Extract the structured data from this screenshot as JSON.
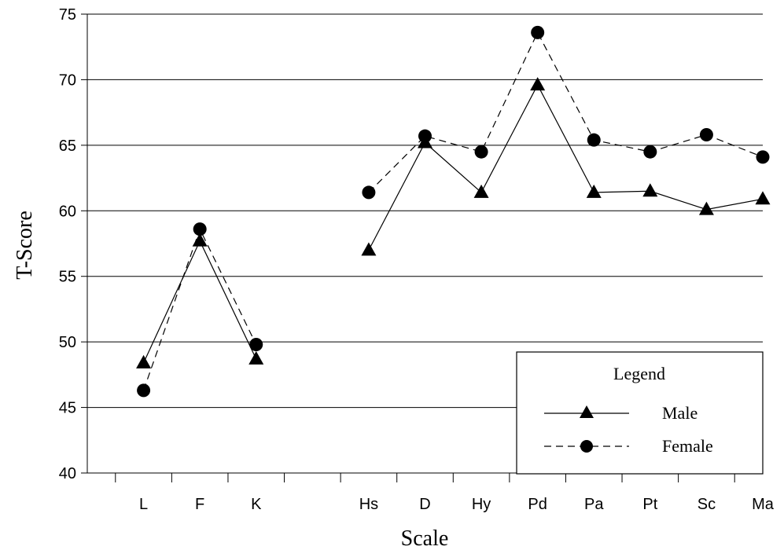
{
  "chart_data": {
    "type": "line",
    "xlabel": "Scale",
    "ylabel": "T-Score",
    "ylim": [
      40,
      75
    ],
    "yticks": [
      40,
      45,
      50,
      55,
      60,
      65,
      70,
      75
    ],
    "categories": [
      "L",
      "F",
      "K",
      "",
      "Hs",
      "D",
      "Hy",
      "Pd",
      "Pa",
      "Pt",
      "Sc",
      "Ma"
    ],
    "grid": "horizontal",
    "legend": {
      "title": "Legend",
      "position": "bottom-right"
    },
    "series": [
      {
        "name": "Male",
        "marker": "triangle",
        "line": "solid",
        "segments": [
          {
            "categories": [
              "L",
              "F",
              "K"
            ],
            "values": [
              48.4,
              57.7,
              48.7
            ]
          },
          {
            "categories": [
              "Hs",
              "D",
              "Hy",
              "Pd",
              "Pa",
              "Pt",
              "Sc",
              "Ma"
            ],
            "values": [
              57.0,
              65.2,
              61.4,
              69.6,
              61.4,
              61.5,
              60.1,
              60.9
            ]
          }
        ]
      },
      {
        "name": "Female",
        "marker": "circle",
        "line": "dashed",
        "segments": [
          {
            "categories": [
              "L",
              "F",
              "K"
            ],
            "values": [
              46.3,
              58.6,
              49.8
            ]
          },
          {
            "categories": [
              "Hs",
              "D",
              "Hy",
              "Pd",
              "Pa",
              "Pt",
              "Sc",
              "Ma"
            ],
            "values": [
              61.4,
              65.7,
              64.5,
              73.6,
              65.4,
              64.5,
              65.8,
              64.1
            ]
          }
        ]
      }
    ]
  }
}
